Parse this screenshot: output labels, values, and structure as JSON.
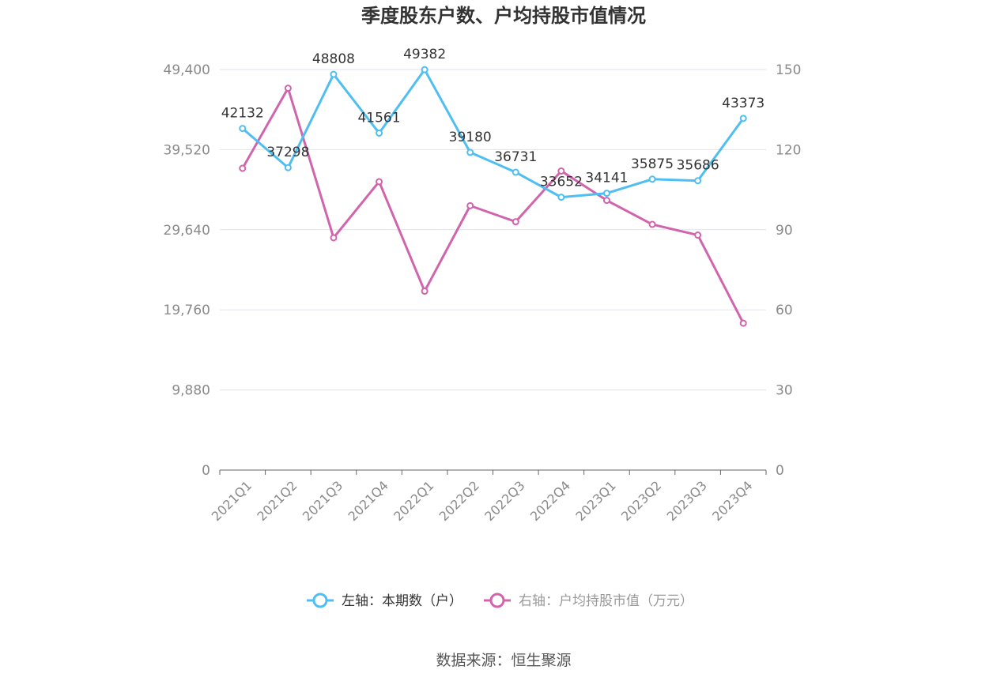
{
  "chart_data": {
    "type": "line",
    "title": "季度股东户数、户均持股市值情况",
    "categories": [
      "2021Q1",
      "2021Q2",
      "2021Q3",
      "2021Q4",
      "2022Q1",
      "2022Q2",
      "2022Q3",
      "2022Q4",
      "2023Q1",
      "2023Q2",
      "2023Q3",
      "2023Q4"
    ],
    "y_left": {
      "ticks": [
        "0",
        "9,880",
        "19,760",
        "29,640",
        "39,520",
        "49,400"
      ],
      "ylim": [
        0,
        49400
      ]
    },
    "y_right": {
      "ticks": [
        "0",
        "30",
        "60",
        "90",
        "120",
        "150"
      ],
      "ylim": [
        0,
        150
      ]
    },
    "series": [
      {
        "name": "左轴：本期数（户）",
        "axis": "left",
        "color": "#4fbef0",
        "values": [
          42132,
          37298,
          48808,
          41561,
          49382,
          39180,
          36731,
          33652,
          34141,
          35875,
          35686,
          43373
        ],
        "labels": [
          "42132",
          "37298",
          "48808",
          "41561",
          "49382",
          "39180",
          "36731",
          "33652",
          "34141",
          "35875",
          "35686",
          "43373"
        ]
      },
      {
        "name": "右轴：户均持股市值（万元）",
        "axis": "right",
        "color": "#d065ad",
        "values": [
          113,
          143,
          87,
          108,
          67,
          99,
          93,
          112,
          101,
          92,
          88,
          55
        ]
      }
    ],
    "grid": true,
    "legend_position": "bottom",
    "source": "数据来源：恒生聚源"
  }
}
